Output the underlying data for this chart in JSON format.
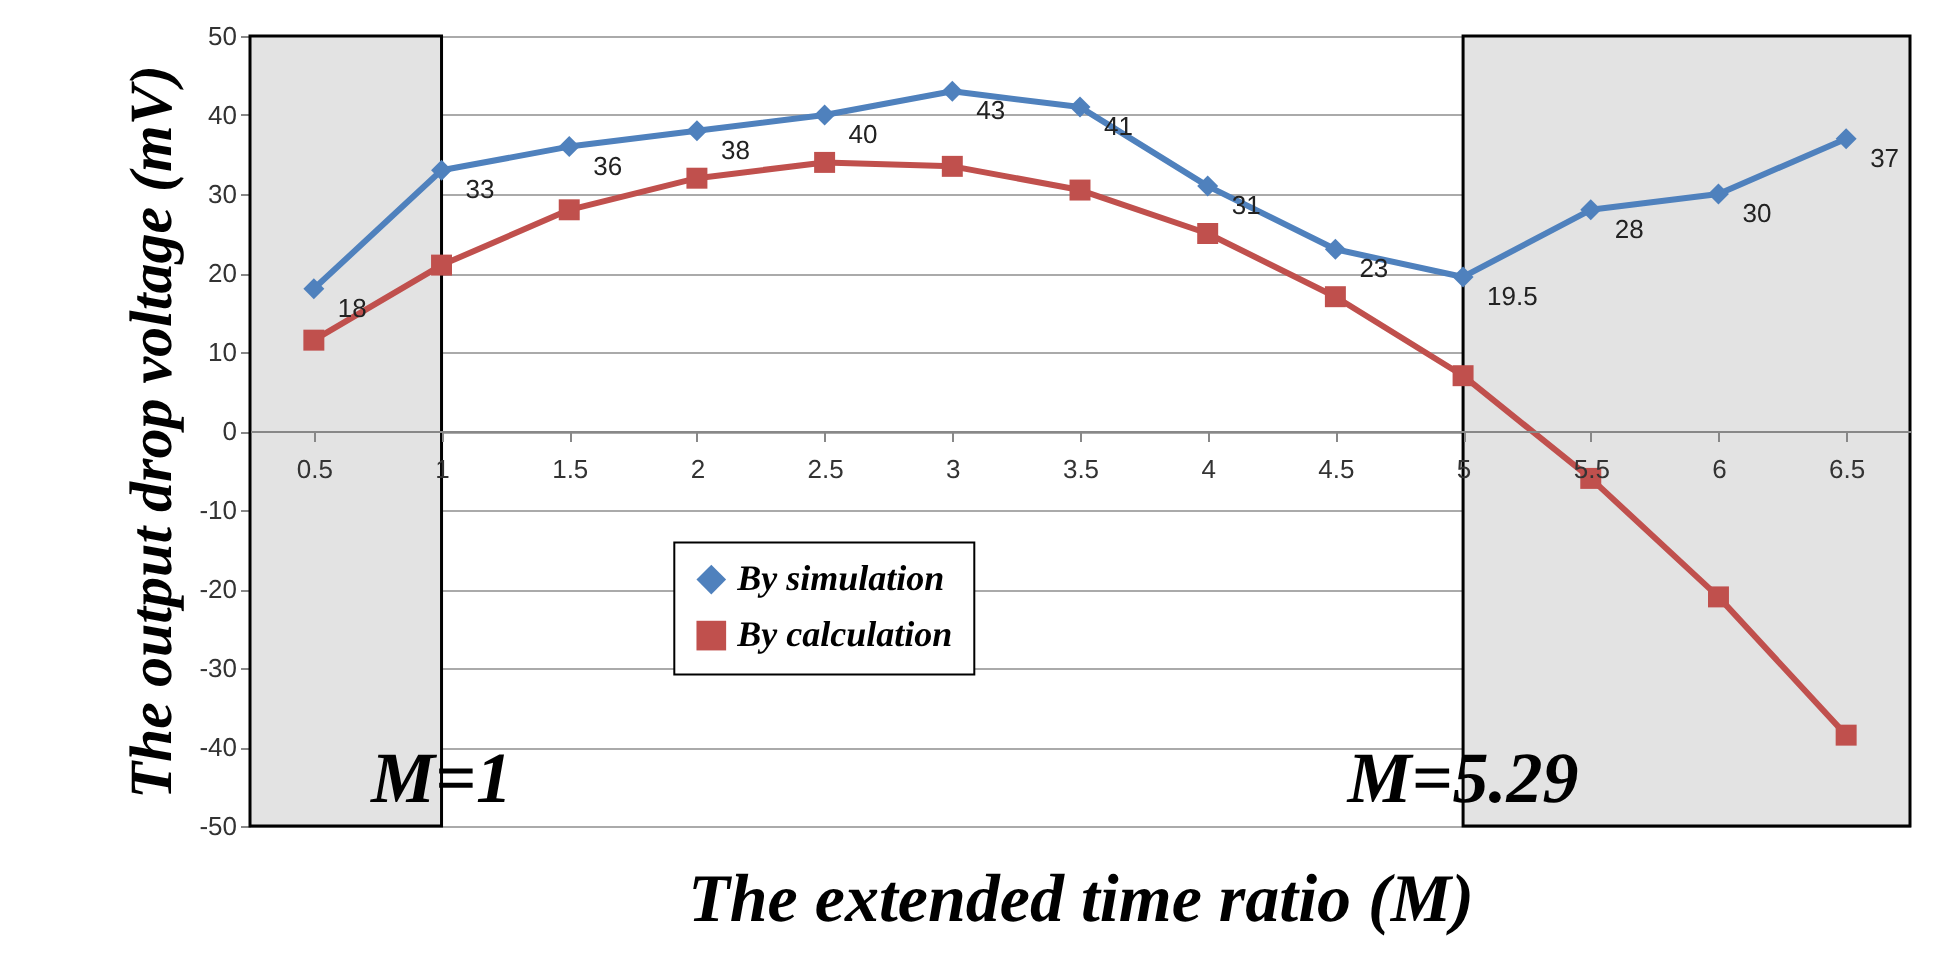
{
  "chart_data": {
    "type": "line",
    "xlabel": "The extended time ratio (M)",
    "ylabel": "The output drop voltage (mV)",
    "x": [
      0.5,
      1,
      1.5,
      2,
      2.5,
      3,
      3.5,
      4,
      4.5,
      5,
      5.5,
      6,
      6.5
    ],
    "xlim": [
      0.25,
      6.75
    ],
    "xticks": [
      0.5,
      1,
      1.5,
      2,
      2.5,
      3,
      3.5,
      4,
      4.5,
      5,
      5.5,
      6,
      6.5
    ],
    "ylim": [
      -50,
      50
    ],
    "yticks": [
      -50,
      -40,
      -30,
      -20,
      -10,
      0,
      10,
      20,
      30,
      40,
      50
    ],
    "grid": "y",
    "legend": "bottom",
    "series": [
      {
        "name": "By simulation",
        "color": "#4f81bd",
        "marker": "diamond",
        "values": [
          18,
          33,
          36,
          38,
          40,
          43,
          41,
          31,
          23,
          19.5,
          28,
          30,
          37
        ],
        "value_labels": [
          "18",
          "33",
          "36",
          "38",
          "40",
          "43",
          "41",
          "31",
          "23",
          "19.5",
          "28",
          "30",
          "37"
        ]
      },
      {
        "name": "By calculation",
        "color": "#c0504d",
        "marker": "square",
        "values": [
          11.5,
          21,
          28,
          32,
          34,
          33.5,
          30.5,
          25,
          17,
          7,
          -6,
          -21,
          -38.5
        ]
      }
    ],
    "bands": [
      {
        "axis": "x",
        "from": 0.25,
        "to": 1,
        "label": "M=1",
        "color": "#e3e3e3"
      },
      {
        "axis": "x",
        "from": 5,
        "to": 6.75,
        "label": "M=5.29",
        "color": "#e3e3e3"
      }
    ]
  }
}
